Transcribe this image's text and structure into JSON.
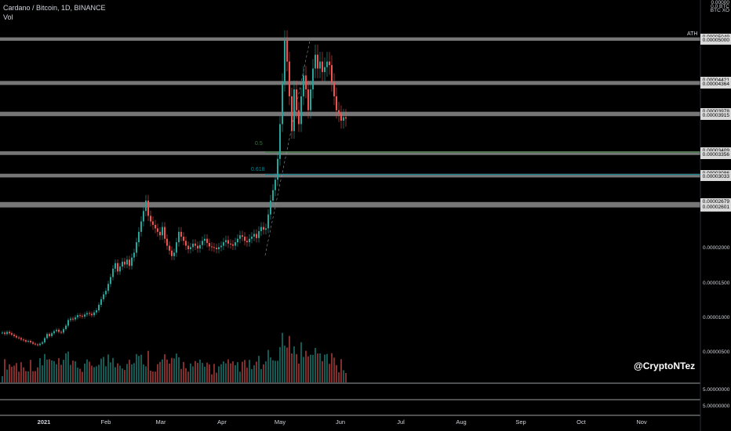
{
  "legend": {
    "symbol": "Cardano / Bitcoin, 1D, BINANCE",
    "volume": "Vol"
  },
  "watermark": "@CryptoNTez",
  "ath_label": "ATH",
  "fib_labels": {
    "f05": "0.5",
    "f0618": "0.618"
  },
  "top_axis": {
    "t1": "0.00000",
    "t2": "0.0 BTC",
    "t3": "BTC   XO"
  },
  "price_levels": [
    "0.00005049",
    "0.00005000",
    "0.00004421",
    "0.00004364",
    "0.00003978",
    "0.00003915",
    "0.00003409",
    "0.00003356",
    "0.00003086",
    "0.00003033",
    "0.00002679",
    "0.00002601"
  ],
  "axis_labels": [
    "0.00002000",
    "0.00001500",
    "0.00001000",
    "0.00000500"
  ],
  "sub_axis": [
    "5.00000000",
    "5.00000000"
  ],
  "months": [
    "2021",
    "Feb",
    "Mar",
    "Apr",
    "May",
    "Jun",
    "Jul",
    "Aug",
    "Sep",
    "Oct",
    "Nov"
  ],
  "colors": {
    "up": "#26a69a",
    "down": "#ef5350",
    "band": "#9e9e9e",
    "fib05": "#2e7d32",
    "fib0618": "#00838f"
  },
  "chart_data": {
    "type": "candlestick",
    "x_start": "2021-01-01",
    "close_series": [
      8e-06,
      7.8e-06,
      8.1e-06,
      7.9e-06,
      7.7e-06,
      7.5e-06,
      7.3e-06,
      7.2e-06,
      7e-06,
      6.9e-06,
      6.7e-06,
      6.8e-06,
      6.6e-06,
      6.4e-06,
      6.3e-06,
      6.2e-06,
      6.4e-06,
      6.6e-06,
      7.2e-06,
      7.8e-06,
      7.5e-06,
      7.9e-06,
      8.2e-06,
      8.4e-06,
      8.1e-06,
      8e-06,
      8.5e-06,
      9e-06,
      9.8e-06,
      1e-05,
      9.9e-06,
      1.02e-05,
      1.05e-05,
      1.04e-05,
      1.03e-05,
      1.06e-05,
      1.08e-05,
      1.07e-05,
      1.05e-05,
      1.09e-05,
      1.12e-05,
      1.2e-05,
      1.28e-05,
      1.35e-05,
      1.4e-05,
      1.5e-05,
      1.6e-05,
      1.72e-05,
      1.8e-05,
      1.68e-05,
      1.75e-05,
      1.82e-05,
      1.78e-05,
      1.85e-05,
      1.76e-05,
      1.88e-05,
      1.95e-05,
      2.1e-05,
      2.25e-05,
      2.4e-05,
      2.55e-05,
      2.7e-05,
      2.48e-05,
      2.4e-05,
      2.35e-05,
      2.3e-05,
      2.25e-05,
      2.2e-05,
      2.32e-05,
      2.15e-05,
      2.05e-05,
      1.98e-05,
      1.9e-05,
      1.95e-05,
      2.1e-05,
      2.25e-05,
      2.18e-05,
      2.12e-05,
      2.05e-05,
      2e-05,
      2.03e-05,
      2.08e-05,
      2.05e-05,
      2.01e-05,
      2.06e-05,
      2.12e-05,
      2.15e-05,
      2.09e-05,
      2.04e-05,
      2.03e-05,
      2.02e-05,
      2e-05,
      2.03e-05,
      2.05e-05,
      2.1e-05,
      2.13e-05,
      2.08e-05,
      2.07e-05,
      2.05e-05,
      2.1e-05,
      2.15e-05,
      2.2e-05,
      2.18e-05,
      2.12e-05,
      2.1e-05,
      2.15e-05,
      2.18e-05,
      2.22e-05,
      2.16e-05,
      2.26e-05,
      2.32e-05,
      2.28e-05,
      2.3e-05,
      2.5e-05,
      2.7e-05,
      2.85e-05,
      3e-05,
      3.3e-05,
      3.8e-05,
      4.4e-05,
      5e-05,
      4.7e-05,
      4.2e-05,
      3.7e-05,
      4.3e-05,
      4e-05,
      3.8e-05,
      4.2e-05,
      4.5e-05,
      4.3e-05,
      4e-05,
      4.3e-05,
      4.6e-05,
      4.8e-05,
      4.6e-05,
      4.7e-05,
      4.55e-05,
      4.62e-05,
      4.7e-05,
      4.65e-05,
      4.4e-05,
      4.2e-05,
      4e-05,
      3.95e-05,
      3.85e-05,
      3.9e-05,
      3.88e-05
    ],
    "levels_btc": [
      5.049e-05,
      5e-05,
      4.421e-05,
      4.364e-05,
      3.978e-05,
      3.915e-05,
      3.409e-05,
      3.356e-05,
      3.086e-05,
      3.033e-05,
      2.679e-05,
      2.601e-05
    ],
    "fib": [
      {
        "level": "0.5",
        "price": 3.409e-05
      },
      {
        "level": "0.618",
        "price": 3.086e-05
      }
    ]
  }
}
